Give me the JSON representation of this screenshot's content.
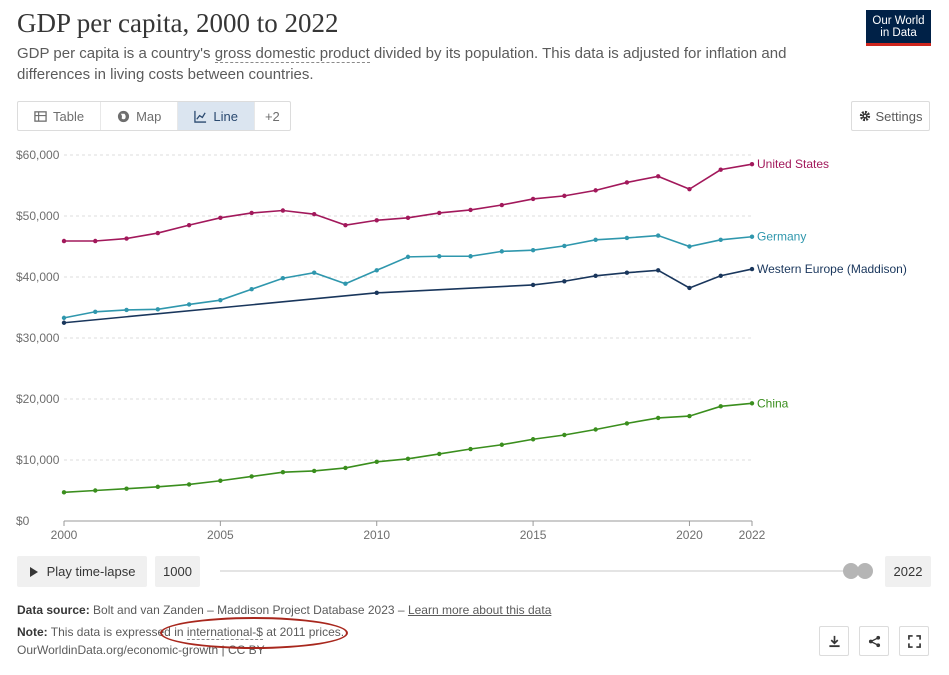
{
  "header": {
    "title": "GDP per capita, 2000 to 2022",
    "subtitle_before": "GDP per capita is a country's ",
    "subtitle_link": "gross domestic product",
    "subtitle_after": " divided by its population. This data is adjusted for inflation and differences in living costs between countries.",
    "logo_line1": "Our World",
    "logo_line2": "in Data"
  },
  "tabs": [
    {
      "label": "Table",
      "icon": "table-icon"
    },
    {
      "label": "Map",
      "icon": "globe-icon"
    },
    {
      "label": "Line",
      "icon": "line-chart-icon",
      "active": true
    },
    {
      "label": "+2"
    }
  ],
  "settings_label": "Settings",
  "controls": {
    "play_label": "Play time-lapse",
    "start_year": "1000",
    "end_year": "2022"
  },
  "footer": {
    "source_label": "Data source:",
    "source_text": "Bolt and van Zanden – Maddison Project Database 2023 – ",
    "source_link": "Learn more about this data",
    "note_label": "Note:",
    "note_before": "This data is expressed in ",
    "note_link": "international-$",
    "note_after": " at 2011 prices.",
    "url": "OurWorldinData.org/economic-growth | CC BY"
  },
  "colors": {
    "united_states": "#a2185b",
    "germany": "#2f97ad",
    "western_europe": "#19365c",
    "china": "#3a8e1d",
    "annotation": "#a8271d"
  },
  "chart_data": {
    "type": "line",
    "y_ticks": [
      "$0",
      "$10,000",
      "$20,000",
      "$30,000",
      "$40,000",
      "$50,000",
      "$60,000"
    ],
    "ylim": [
      0,
      60000
    ],
    "x_ticks": [
      "2000",
      "2005",
      "2010",
      "2015",
      "2020",
      "2022"
    ],
    "xlim": [
      2000,
      2022
    ],
    "grid": true,
    "series": [
      {
        "name": "United States",
        "color": "#a2185b",
        "x": [
          2000,
          2001,
          2002,
          2003,
          2004,
          2005,
          2006,
          2007,
          2008,
          2009,
          2010,
          2011,
          2012,
          2013,
          2014,
          2015,
          2016,
          2017,
          2018,
          2019,
          2020,
          2021,
          2022
        ],
        "values": [
          45900,
          45900,
          46300,
          47200,
          48500,
          49700,
          50500,
          50900,
          50300,
          48500,
          49300,
          49700,
          50500,
          51000,
          51800,
          52800,
          53300,
          54200,
          55500,
          56500,
          54400,
          57600,
          58500
        ]
      },
      {
        "name": "Germany",
        "color": "#2f97ad",
        "x": [
          2000,
          2001,
          2002,
          2003,
          2004,
          2005,
          2006,
          2007,
          2008,
          2009,
          2010,
          2011,
          2012,
          2013,
          2014,
          2015,
          2016,
          2017,
          2018,
          2019,
          2020,
          2021,
          2022
        ],
        "values": [
          33300,
          34300,
          34600,
          34700,
          35500,
          36200,
          38000,
          39800,
          40700,
          38900,
          41100,
          43300,
          43400,
          43400,
          44200,
          44400,
          45100,
          46100,
          46400,
          46800,
          45000,
          46100,
          46600
        ]
      },
      {
        "name": "Western Europe (Maddison)",
        "color": "#19365c",
        "x": [
          2000,
          2010,
          2015,
          2016,
          2017,
          2018,
          2019,
          2020,
          2021,
          2022
        ],
        "values": [
          32500,
          37400,
          38700,
          39300,
          40200,
          40700,
          41100,
          38200,
          40200,
          41300
        ]
      },
      {
        "name": "China",
        "color": "#3a8e1d",
        "x": [
          2000,
          2001,
          2002,
          2003,
          2004,
          2005,
          2006,
          2007,
          2008,
          2009,
          2010,
          2011,
          2012,
          2013,
          2014,
          2015,
          2016,
          2017,
          2018,
          2019,
          2020,
          2021,
          2022
        ],
        "values": [
          4700,
          5000,
          5300,
          5600,
          6000,
          6600,
          7300,
          8000,
          8200,
          8700,
          9700,
          10200,
          11000,
          11800,
          12500,
          13400,
          14100,
          15000,
          16000,
          16900,
          17200,
          18800,
          19300
        ]
      }
    ]
  }
}
